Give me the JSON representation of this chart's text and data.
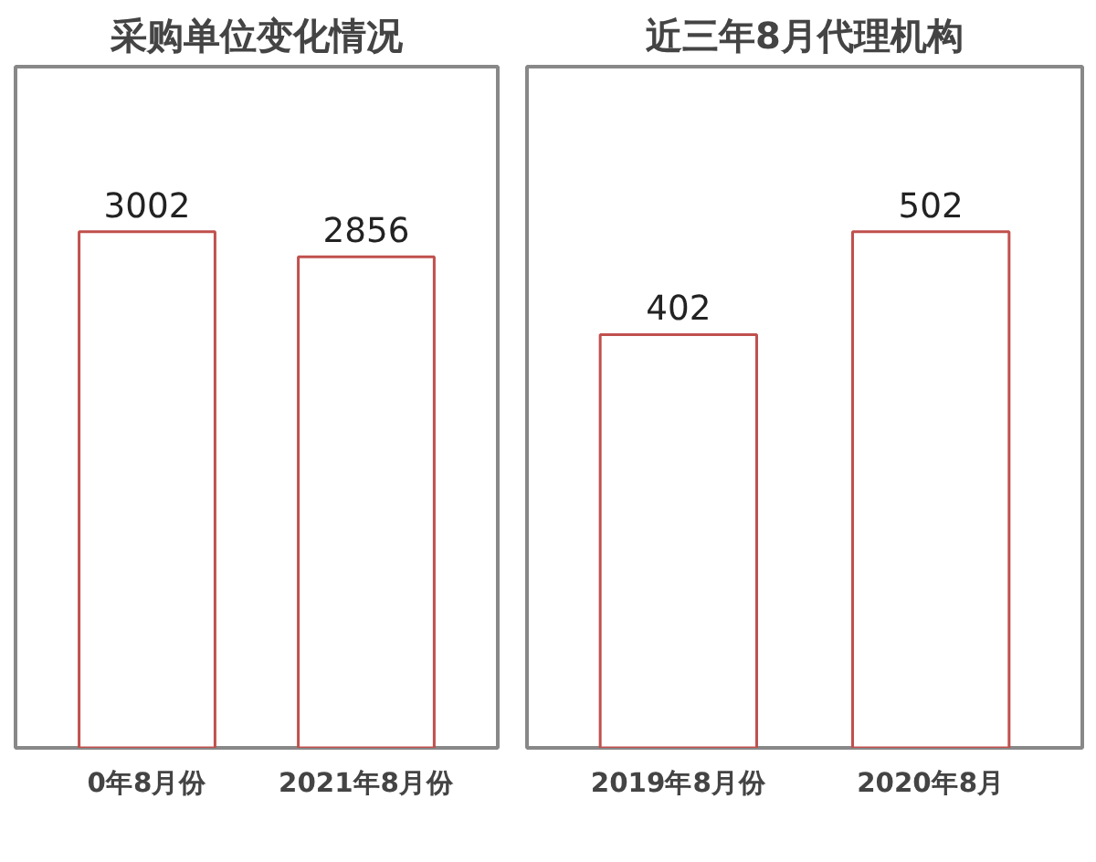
{
  "chart_data": [
    {
      "type": "bar",
      "title": "采购单位变化情况",
      "categories": [
        "0年8月份",
        "2021年8月份"
      ],
      "values": [
        3002,
        2856
      ],
      "color": "#c0504d",
      "data_labels": true,
      "tick_labels": "x",
      "grid": false
    },
    {
      "type": "bar",
      "title": "近三年8月代理机构",
      "categories": [
        "2019年8月份",
        "2020年8月"
      ],
      "values": [
        402,
        502
      ],
      "color": "#c0504d",
      "data_labels": true,
      "tick_labels": "x",
      "grid": false
    }
  ]
}
